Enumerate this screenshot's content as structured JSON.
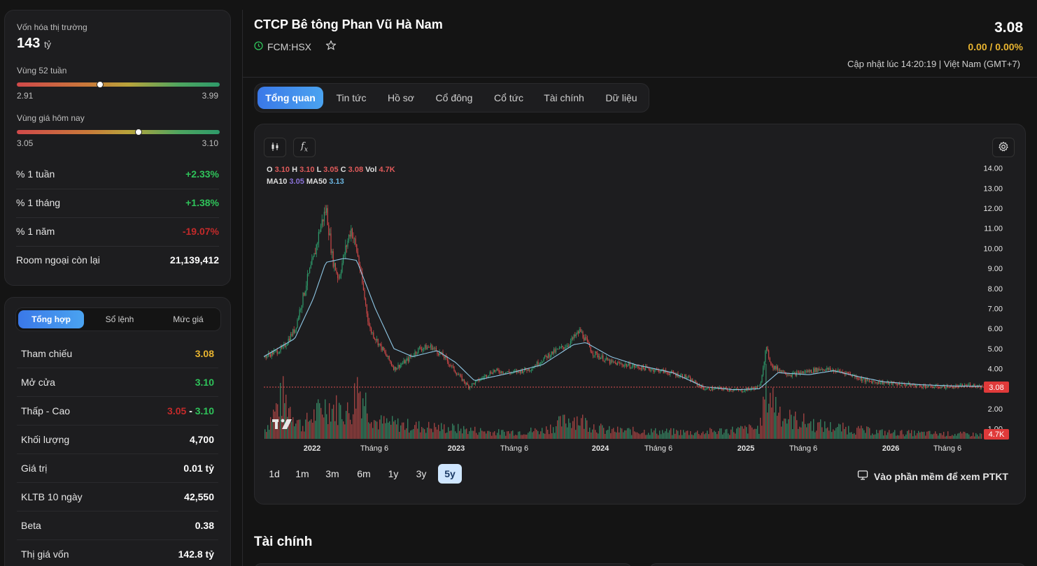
{
  "market": {
    "cap_label": "Vốn hóa thị trường",
    "cap_value": "143",
    "cap_unit": "tỷ",
    "range52_label": "Vùng 52 tuần",
    "range52_low": "2.91",
    "range52_high": "3.99",
    "range52_position": 0.41,
    "today_label": "Vùng giá hôm nay",
    "today_low": "3.05",
    "today_high": "3.10",
    "today_position": 0.6,
    "rows": [
      {
        "label": "% 1 tuần",
        "value": "+2.33%",
        "color": "#2fc35a"
      },
      {
        "label": "% 1 tháng",
        "value": "+1.38%",
        "color": "#2fc35a"
      },
      {
        "label": "% 1 năm",
        "value": "-19.07%",
        "color": "#c42a2a"
      },
      {
        "label": "Room ngoại còn lại",
        "value": "21,139,412",
        "color": "#ffffff"
      }
    ]
  },
  "trade": {
    "tabs": [
      "Tổng hợp",
      "Sổ lệnh",
      "Mức giá"
    ],
    "rows": [
      {
        "label": "Tham chiếu",
        "value": "3.08",
        "color": "#e8b430"
      },
      {
        "label": "Mở cửa",
        "value": "3.10",
        "color": "#2fc35a"
      },
      {
        "label": "Thấp - Cao",
        "low": "3.05",
        "sep": "-",
        "high": "3.10"
      },
      {
        "label": "Khối lượng",
        "value": "4,700",
        "color": "#ffffff"
      },
      {
        "label": "Giá trị",
        "value": "0.01 tỷ",
        "color": "#ffffff"
      },
      {
        "label": "KLTB 10 ngày",
        "value": "42,550",
        "color": "#ffffff"
      },
      {
        "label": "Beta",
        "value": "0.38",
        "color": "#ffffff"
      },
      {
        "label": "Thị giá vốn",
        "value": "142.8 tỷ",
        "color": "#ffffff"
      }
    ]
  },
  "header": {
    "company": "CTCP Bê tông Phan Vũ Hà Nam",
    "ticker": "FCM:HSX",
    "price": "3.08",
    "change": "0.00 / 0.00%",
    "updated": "Cập nhật lúc 14:20:19 | Việt Nam (GMT+7)"
  },
  "tabs": [
    "Tổng quan",
    "Tin tức",
    "Hồ sơ",
    "Cổ đông",
    "Cổ tức",
    "Tài chính",
    "Dữ liệu"
  ],
  "chart": {
    "legend1": {
      "o": "3.10",
      "h": "3.10",
      "l": "3.05",
      "c": "3.08",
      "vol": "4.7K"
    },
    "legend2": {
      "ma10": "3.05",
      "ma50": "3.13"
    },
    "price_tag": "3.08",
    "vol_tag": "4.7K",
    "periods": [
      "1d",
      "1m",
      "3m",
      "6m",
      "1y",
      "3y",
      "5y"
    ],
    "active_period": "5y",
    "ptkt_link": "Vào phần mềm để xem PTKT"
  },
  "section_title": "Tài chính",
  "chart_data": {
    "type": "candlestick",
    "y_ticks": [
      "14.00",
      "13.00",
      "12.00",
      "11.00",
      "10.00",
      "9.00",
      "8.00",
      "7.00",
      "6.00",
      "5.00",
      "4.00",
      "2.00",
      "1.00"
    ],
    "x_ticks": [
      "2022",
      "Tháng 6",
      "2023",
      "Tháng 6",
      "2024",
      "Tháng 6",
      "2025",
      "Tháng 6",
      "2026",
      "Tháng 6"
    ],
    "ylim": [
      0.5,
      14.2
    ],
    "price_path": [
      [
        0,
        4.6
      ],
      [
        3,
        5.0
      ],
      [
        5,
        6.0
      ],
      [
        7,
        8.5
      ],
      [
        8,
        9.5
      ],
      [
        9,
        11.0
      ],
      [
        10,
        12.0
      ],
      [
        11,
        9.5
      ],
      [
        12,
        8.5
      ],
      [
        13,
        9.8
      ],
      [
        14,
        11.0
      ],
      [
        15,
        9.8
      ],
      [
        17,
        6.0
      ],
      [
        19,
        5.0
      ],
      [
        21,
        4.0
      ],
      [
        23,
        4.4
      ],
      [
        25,
        5.0
      ],
      [
        27,
        5.1
      ],
      [
        29,
        4.6
      ],
      [
        31,
        3.8
      ],
      [
        33,
        3.1
      ],
      [
        35,
        3.5
      ],
      [
        37,
        3.9
      ],
      [
        40,
        3.8
      ],
      [
        43,
        4.0
      ],
      [
        46,
        4.7
      ],
      [
        49,
        5.2
      ],
      [
        51,
        5.9
      ],
      [
        53,
        4.8
      ],
      [
        56,
        4.3
      ],
      [
        60,
        4.1
      ],
      [
        64,
        3.9
      ],
      [
        68,
        3.6
      ],
      [
        71,
        3.0
      ],
      [
        74,
        3.0
      ],
      [
        77,
        2.9
      ],
      [
        80,
        3.1
      ],
      [
        81,
        5.0
      ],
      [
        82,
        4.1
      ],
      [
        85,
        3.7
      ],
      [
        90,
        4.0
      ],
      [
        94,
        3.8
      ],
      [
        97,
        3.4
      ],
      [
        100,
        3.3
      ],
      [
        104,
        3.2
      ],
      [
        108,
        3.1
      ],
      [
        112,
        3.1
      ],
      [
        114,
        3.2
      ],
      [
        116,
        3.1
      ]
    ],
    "ma50_path": [
      [
        0,
        4.6
      ],
      [
        5,
        5.5
      ],
      [
        8,
        7.5
      ],
      [
        10,
        9.3
      ],
      [
        13,
        9.5
      ],
      [
        15,
        9.4
      ],
      [
        18,
        7.0
      ],
      [
        21,
        5.0
      ],
      [
        24,
        4.6
      ],
      [
        28,
        4.9
      ],
      [
        31,
        4.3
      ],
      [
        34,
        3.4
      ],
      [
        37,
        3.6
      ],
      [
        40,
        3.8
      ],
      [
        45,
        4.2
      ],
      [
        50,
        5.2
      ],
      [
        52,
        5.3
      ],
      [
        56,
        4.6
      ],
      [
        60,
        4.2
      ],
      [
        66,
        3.8
      ],
      [
        71,
        3.1
      ],
      [
        76,
        2.95
      ],
      [
        80,
        3.0
      ],
      [
        83,
        3.8
      ],
      [
        88,
        3.7
      ],
      [
        92,
        3.9
      ],
      [
        96,
        3.6
      ],
      [
        100,
        3.35
      ],
      [
        106,
        3.2
      ],
      [
        112,
        3.13
      ],
      [
        116,
        3.12
      ]
    ],
    "volume_path": [
      [
        0,
        0.2
      ],
      [
        3,
        1.0
      ],
      [
        6,
        0.3
      ],
      [
        10,
        0.8
      ],
      [
        14,
        0.6
      ],
      [
        15,
        1.3
      ],
      [
        18,
        0.4
      ],
      [
        24,
        0.3
      ],
      [
        30,
        0.25
      ],
      [
        38,
        0.15
      ],
      [
        45,
        0.2
      ],
      [
        50,
        0.5
      ],
      [
        55,
        0.2
      ],
      [
        70,
        0.15
      ],
      [
        80,
        0.25
      ],
      [
        81,
        1.2
      ],
      [
        84,
        0.5
      ],
      [
        90,
        0.3
      ],
      [
        100,
        0.15
      ],
      [
        116,
        0.1
      ]
    ]
  }
}
